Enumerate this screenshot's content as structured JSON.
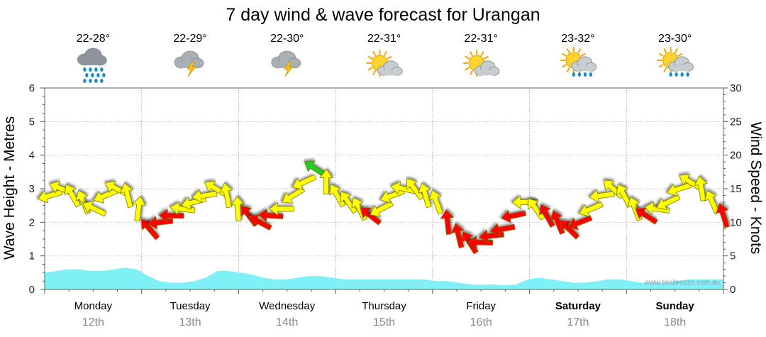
{
  "chart_data": {
    "type": "line",
    "title": "7 day wind & wave forecast for Urangan",
    "ylabel_left": "Wave Height - Metres",
    "ylabel_right": "Wind Speed - Knots",
    "ylim_left": [
      0,
      6
    ],
    "ylim_right": [
      0,
      30
    ],
    "yticks_left": [
      "0",
      "1",
      "2",
      "3",
      "4",
      "5",
      "6"
    ],
    "yticks_right": [
      "0",
      "5",
      "10",
      "15",
      "20",
      "25",
      "30"
    ],
    "days": [
      {
        "name": "Monday",
        "date": "12th",
        "temp": "22-28°",
        "weather": "rain-showers-icon",
        "bold": false
      },
      {
        "name": "Tuesday",
        "date": "13th",
        "temp": "22-29°",
        "weather": "thunderstorm-icon",
        "bold": false
      },
      {
        "name": "Wednesday",
        "date": "14th",
        "temp": "22-30°",
        "weather": "thunderstorm-icon",
        "bold": false
      },
      {
        "name": "Thursday",
        "date": "15th",
        "temp": "22-31°",
        "weather": "partly-cloudy-icon",
        "bold": false
      },
      {
        "name": "Friday",
        "date": "16th",
        "temp": "22-31°",
        "weather": "partly-cloudy-icon",
        "bold": false
      },
      {
        "name": "Saturday",
        "date": "17th",
        "temp": "23-32°",
        "weather": "sun-showers-icon",
        "bold": true
      },
      {
        "name": "Sunday",
        "date": "18th",
        "temp": "23-30°",
        "weather": "sun-showers-icon",
        "bold": true
      }
    ],
    "wave_height_m": [
      0.5,
      0.55,
      0.6,
      0.6,
      0.55,
      0.55,
      0.6,
      0.65,
      0.6,
      0.4,
      0.25,
      0.2,
      0.2,
      0.25,
      0.35,
      0.55,
      0.55,
      0.5,
      0.45,
      0.35,
      0.3,
      0.3,
      0.35,
      0.4,
      0.4,
      0.35,
      0.3,
      0.3,
      0.3,
      0.3,
      0.3,
      0.3,
      0.3,
      0.3,
      0.25,
      0.25,
      0.2,
      0.15,
      0.15,
      0.15,
      0.12,
      0.15,
      0.3,
      0.35,
      0.3,
      0.25,
      0.2,
      0.2,
      0.25,
      0.3,
      0.3,
      0.25,
      0.2,
      0.2,
      0.2,
      0.25,
      0.3,
      0.3,
      0.3,
      0.3
    ],
    "wind_series": [
      {
        "name": "wind",
        "values": [
          14,
          15,
          14,
          13,
          12,
          14,
          15,
          14,
          12,
          9,
          10,
          11,
          12,
          13,
          14,
          15,
          14,
          12,
          11,
          10,
          11,
          12,
          14,
          16,
          18,
          16,
          14,
          13,
          12,
          11,
          12,
          14,
          15,
          15,
          14,
          13,
          10,
          8,
          7,
          7,
          8,
          9,
          11,
          13,
          12,
          11,
          10,
          9,
          10,
          12,
          14,
          15,
          14,
          12,
          11,
          12,
          13,
          15,
          16,
          15,
          13,
          11
        ]
      }
    ],
    "credit": "www.seabreeze.com.au"
  },
  "colors": {
    "wave_fill": "#7ff1f6",
    "gentle_wind": "#ffff00",
    "moderate_wind": "#ff0000",
    "strong_wind": "#22cc22"
  }
}
